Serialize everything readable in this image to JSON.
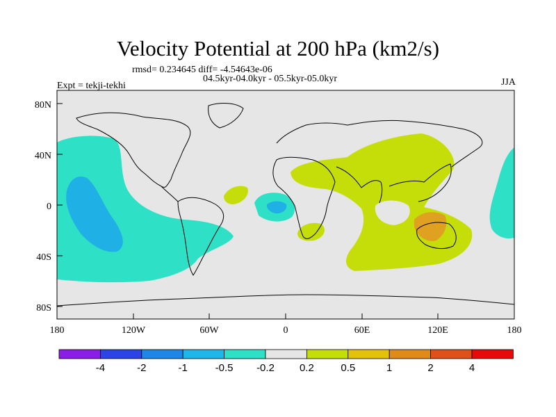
{
  "title": "Velocity Potential at 200 hPa (km2/s)",
  "subtitle_stats": "rmsd= 0.234645 diff= -4.54643e-06",
  "subtitle_periods": "04.5kyr-04.0kyr - 05.5kyr-05.0kyr",
  "left_string": "Expt = tekji-tekhi",
  "right_string": "JJA",
  "map": {
    "lat_labels": [
      "80N",
      "40N",
      "0",
      "40S",
      "80S"
    ],
    "lon_labels": [
      "180",
      "120W",
      "60W",
      "0",
      "60E",
      "120E",
      "180"
    ],
    "colors": {
      "land_ocean_gray": "#e6e6e6",
      "teal": "#2de0c6",
      "blue": "#1fb0e6",
      "lime": "#c5de0a",
      "orange": "#e0a020",
      "coast": "#000000"
    }
  },
  "colorbar": {
    "colors": [
      "#8a1ee6",
      "#2c44e6",
      "#1e86e6",
      "#1fb6ea",
      "#2de0c6",
      "#e6e6e6",
      "#c5de0a",
      "#e2c20a",
      "#e08a1a",
      "#e0501a",
      "#e60a0a"
    ],
    "labels": [
      "-4",
      "-2",
      "-1",
      "-0.5",
      "-0.2",
      "0.2",
      "0.5",
      "1",
      "2",
      "4"
    ]
  }
}
